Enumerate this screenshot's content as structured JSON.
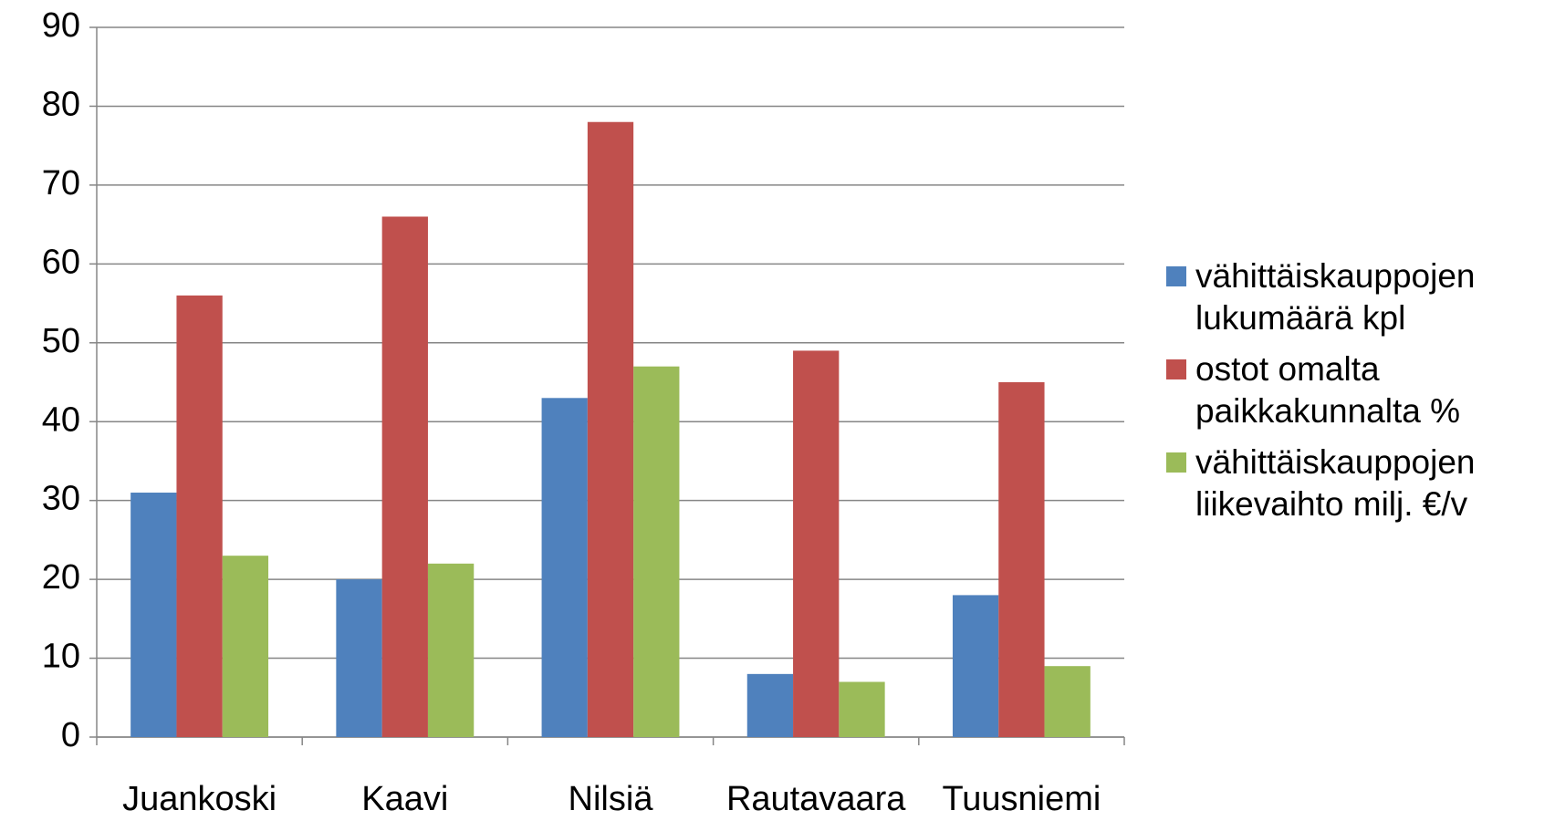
{
  "chart_data": {
    "type": "bar",
    "categories": [
      "Juankoski",
      "Kaavi",
      "Nilsiä",
      "Rautavaara",
      "Tuusniemi"
    ],
    "series": [
      {
        "name": "vähittäiskauppojen lukumäärä kpl",
        "color": "#4f81bd",
        "values": [
          31,
          20,
          43,
          8,
          18
        ]
      },
      {
        "name": "ostot omalta paikkakunnalta %",
        "color": "#c0504d",
        "values": [
          56,
          66,
          78,
          49,
          45
        ]
      },
      {
        "name": "vähittäiskauppojen liikevaihto milj. €/v",
        "color": "#9bbb59",
        "values": [
          23,
          22,
          47,
          7,
          9
        ]
      }
    ],
    "ylim": [
      0,
      90
    ],
    "yticks": [
      0,
      10,
      20,
      30,
      40,
      50,
      60,
      70,
      80,
      90
    ],
    "grid": true,
    "legend": "right"
  }
}
